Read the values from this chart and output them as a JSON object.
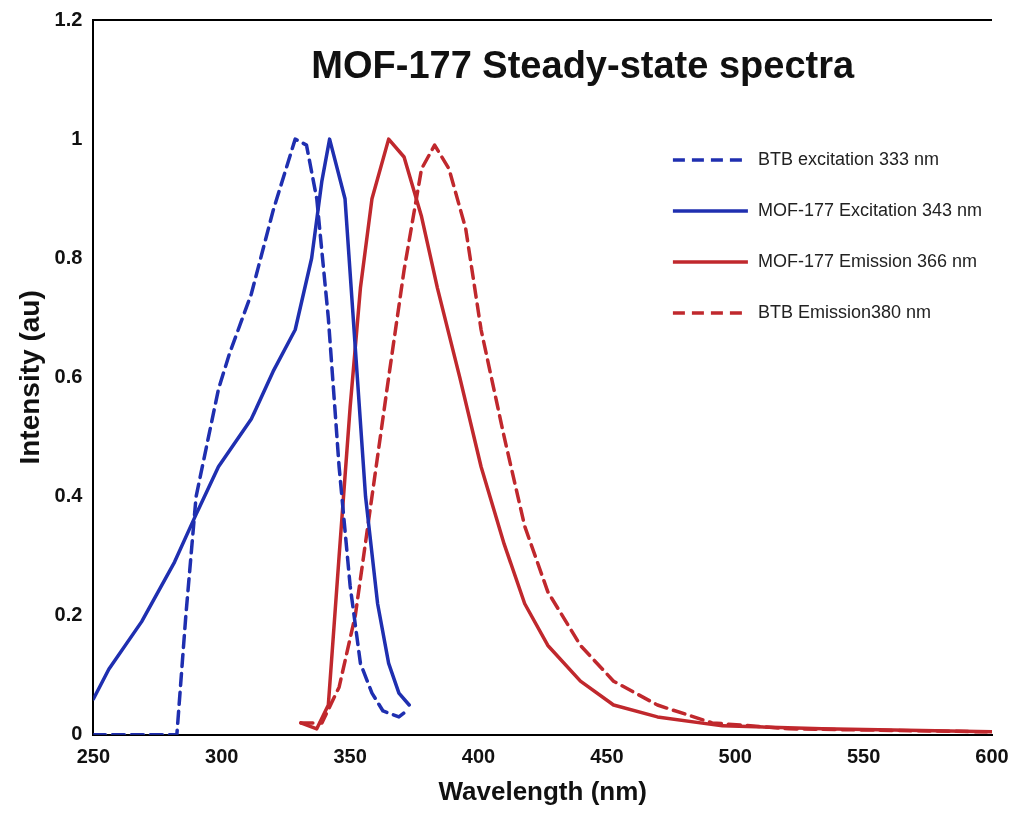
{
  "chart_data": {
    "type": "line",
    "title": "MOF-177 Steady-state spectra",
    "xlabel": "Wavelength (nm)",
    "ylabel": "Intensity (au)",
    "xlim": [
      250,
      600
    ],
    "ylim": [
      0,
      1.2
    ],
    "xticks": [
      250,
      300,
      350,
      400,
      450,
      500,
      550,
      600
    ],
    "yticks": [
      0,
      {
        "value": 0.2,
        "label": "0.2"
      },
      {
        "value": 0.4,
        "label": "0.4"
      },
      {
        "value": 0.6,
        "label": "0.6"
      },
      {
        "value": 0.8,
        "label": "0.8"
      },
      1,
      {
        "value": 1.2,
        "label": "1.2"
      }
    ],
    "grid": false,
    "legend": "top right",
    "marker": "none",
    "series": [
      {
        "name": "BTB excitation 333 nm",
        "color": "#1f2fb0",
        "line_style": "dashed",
        "x": [
          250,
          282.5,
          286,
          290,
          298.7,
          303,
          311.5,
          320,
          328.6,
          333,
          337,
          341.5,
          345.7,
          350,
          354,
          358.5,
          362.8,
          369,
          372
        ],
        "values": [
          0,
          0,
          0.2,
          0.4,
          0.58,
          0.64,
          0.74,
          0.88,
          1.0,
          0.99,
          0.9,
          0.7,
          0.45,
          0.25,
          0.12,
          0.07,
          0.04,
          0.03,
          0.04
        ]
      },
      {
        "name": "MOF-177 Excitation 343 nm",
        "color": "#1f2fb0",
        "line_style": "solid",
        "x": [
          250,
          256,
          268.8,
          281.6,
          290,
          298.7,
          311.5,
          320,
          328.6,
          335,
          339,
          342,
          348,
          352,
          356,
          360.7,
          365,
          369,
          373
        ],
        "values": [
          0.06,
          0.11,
          0.19,
          0.29,
          0.37,
          0.45,
          0.53,
          0.61,
          0.68,
          0.8,
          0.93,
          1.0,
          0.9,
          0.65,
          0.4,
          0.22,
          0.12,
          0.07,
          0.05
        ]
      },
      {
        "name": "MOF-177 Emission 366 nm",
        "color": "#c0282d",
        "line_style": "solid",
        "x": [
          330.8,
          337,
          341.5,
          345.7,
          350,
          354,
          358.5,
          365,
          371,
          377.8,
          384,
          392.7,
          401,
          410,
          418,
          427,
          439.7,
          452.6,
          469.7,
          495,
          533.8,
          600
        ],
        "values": [
          0.02,
          0.01,
          0.05,
          0.3,
          0.55,
          0.75,
          0.9,
          1.0,
          0.97,
          0.87,
          0.75,
          0.6,
          0.45,
          0.32,
          0.22,
          0.15,
          0.09,
          0.05,
          0.03,
          0.015,
          0.01,
          0.005
        ]
      },
      {
        "name": "BTB Emission380 nm",
        "color": "#c0282d",
        "line_style": "dashed",
        "x": [
          330.8,
          339,
          345.7,
          352,
          358.5,
          365,
          371,
          377.8,
          382.9,
          388.5,
          395,
          401,
          410,
          418,
          427,
          439.7,
          452.6,
          469.7,
          491,
          521,
          598
        ],
        "values": [
          0.02,
          0.02,
          0.08,
          0.2,
          0.4,
          0.6,
          0.78,
          0.95,
          0.99,
          0.95,
          0.85,
          0.68,
          0.5,
          0.35,
          0.24,
          0.15,
          0.09,
          0.05,
          0.02,
          0.01,
          0.005
        ]
      }
    ]
  }
}
